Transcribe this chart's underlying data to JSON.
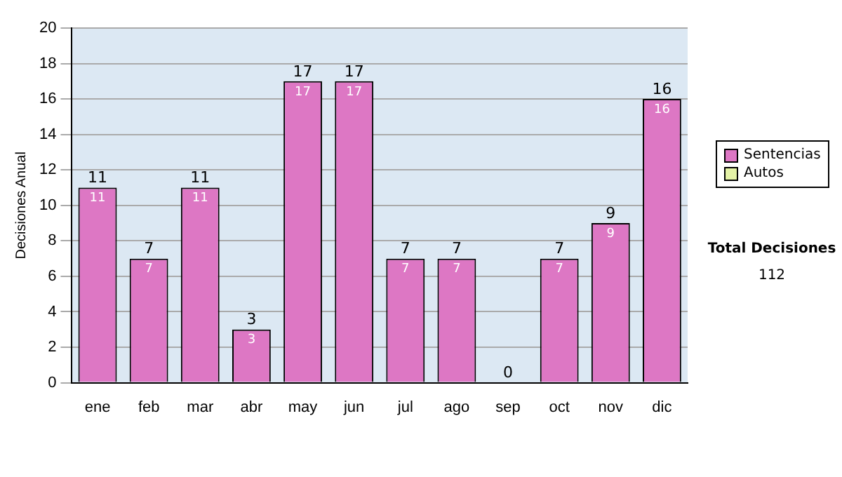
{
  "chart_data": {
    "type": "bar",
    "ylabel": "Decisiones Anual",
    "categories": [
      "ene",
      "feb",
      "mar",
      "abr",
      "may",
      "jun",
      "jul",
      "ago",
      "sep",
      "oct",
      "nov",
      "dic"
    ],
    "series": [
      {
        "name": "Sentencias",
        "color": "#dd77c4",
        "values": [
          11,
          7,
          11,
          3,
          17,
          17,
          7,
          7,
          0,
          7,
          9,
          16
        ],
        "value_labels": [
          "11",
          "7",
          "11",
          "3",
          "17",
          "17",
          "7",
          "7",
          null,
          "7",
          "9",
          "16"
        ]
      },
      {
        "name": "Autos",
        "color": "#e4f2a6",
        "values": [
          0,
          0,
          0,
          0,
          0,
          0,
          0,
          0,
          0,
          0,
          0,
          0
        ]
      }
    ],
    "stacked": true,
    "totals": [
      "11",
      "7",
      "11",
      "3",
      "17",
      "17",
      "7",
      "7",
      "0",
      "7",
      "9",
      "16"
    ],
    "ylim": [
      0,
      20
    ],
    "yticks": [
      0,
      2,
      4,
      6,
      8,
      10,
      12,
      14,
      16,
      18,
      20
    ],
    "grid": "y",
    "legend": "right",
    "annotations": [
      "Total Decisiones",
      "112"
    ]
  }
}
